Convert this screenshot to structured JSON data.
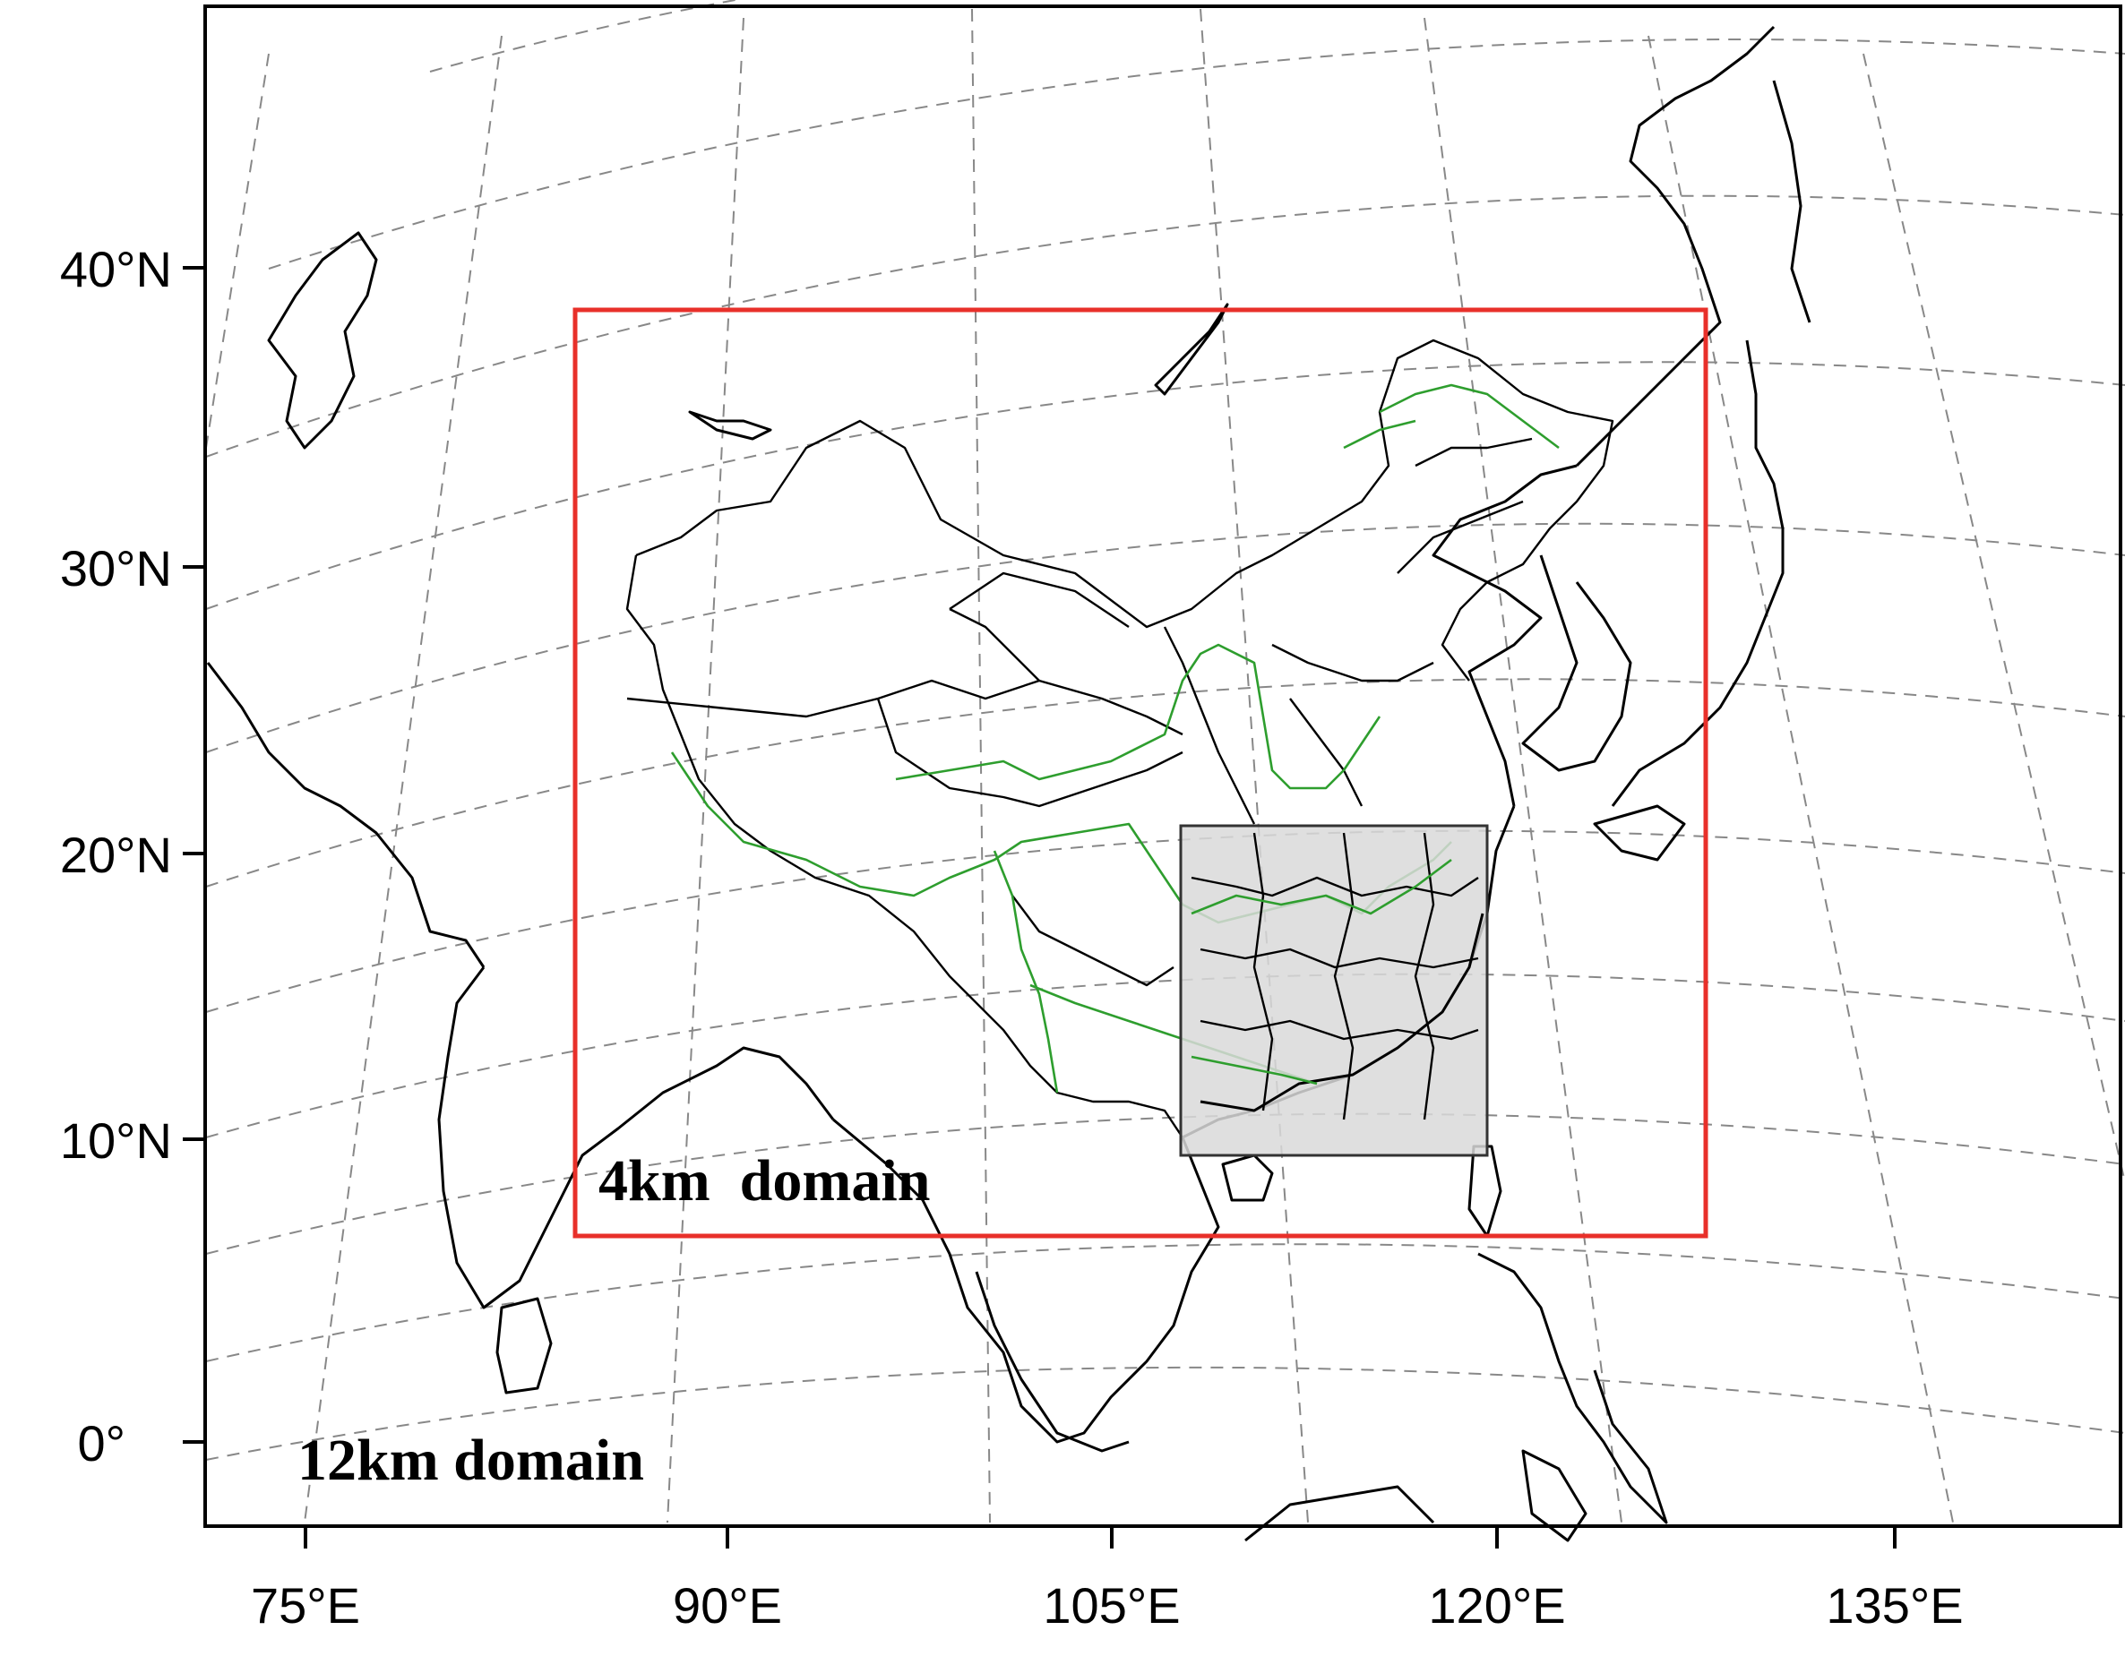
{
  "map": {
    "y_axis_labels": [
      "40°N",
      "30°N",
      "20°N",
      "10°N",
      "0°"
    ],
    "x_axis_labels": [
      "75°E",
      "90°E",
      "105°E",
      "120°E",
      "135°E"
    ],
    "outer_domain_label": "12km domain",
    "inner_domain_label": "4km  domain",
    "colors": {
      "inner_domain_box": "#e8302a",
      "innermost_domain_fill": "#d9d9d9",
      "rivers": "#2e9e2e",
      "coastlines": "#000000",
      "graticule": "#888888"
    }
  }
}
